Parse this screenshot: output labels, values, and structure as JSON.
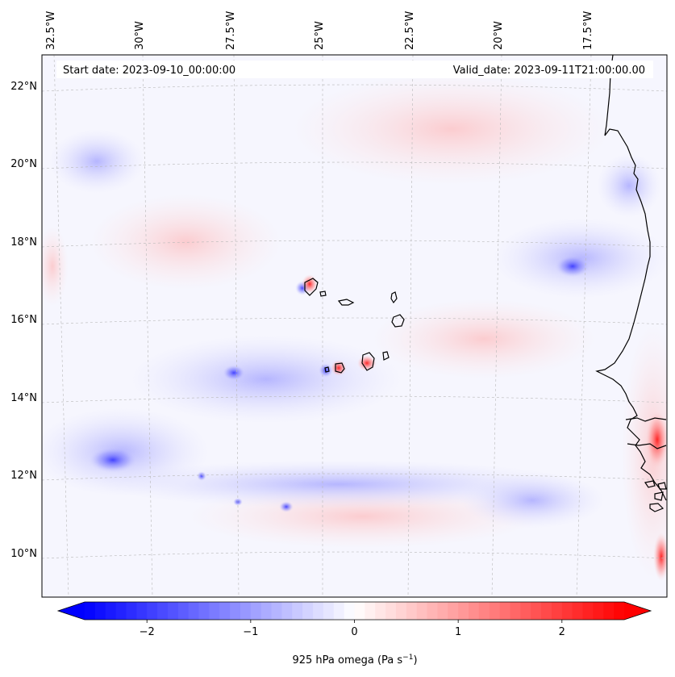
{
  "header": {
    "start_date": "Start date: 2023-09-10_00:00:00",
    "valid_date": "Valid_date: 2023-09-11T21:00:00.00"
  },
  "map": {
    "projection": "lambert-conformal",
    "lon_labels": [
      "32.5°W",
      "30°W",
      "27.5°W",
      "25°W",
      "22.5°W",
      "20°W",
      "17.5°W"
    ],
    "lon_values": [
      -32.5,
      -30,
      -27.5,
      -25,
      -22.5,
      -20,
      -17.5
    ],
    "lat_labels": [
      "22°N",
      "20°N",
      "18°N",
      "16°N",
      "14°N",
      "12°N",
      "10°N"
    ],
    "lat_values": [
      22,
      20,
      18,
      16,
      14,
      12,
      10
    ],
    "gridlines": true,
    "coastline_color": "#000000"
  },
  "colorbar": {
    "label": "925 hPa omega (Pa s",
    "label_exponent": "−1",
    "label_suffix": ")",
    "ticks": [
      {
        "value": -2,
        "label": "−2"
      },
      {
        "value": -1,
        "label": "−1"
      },
      {
        "value": 0,
        "label": "0"
      },
      {
        "value": 1,
        "label": "1"
      },
      {
        "value": 2,
        "label": "2"
      }
    ],
    "range": [
      -2.6,
      2.6
    ],
    "colormap": "bwr",
    "low_color": "#0000ff",
    "mid_color": "#ffffff",
    "high_color": "#ff0000",
    "extend": "both"
  }
}
